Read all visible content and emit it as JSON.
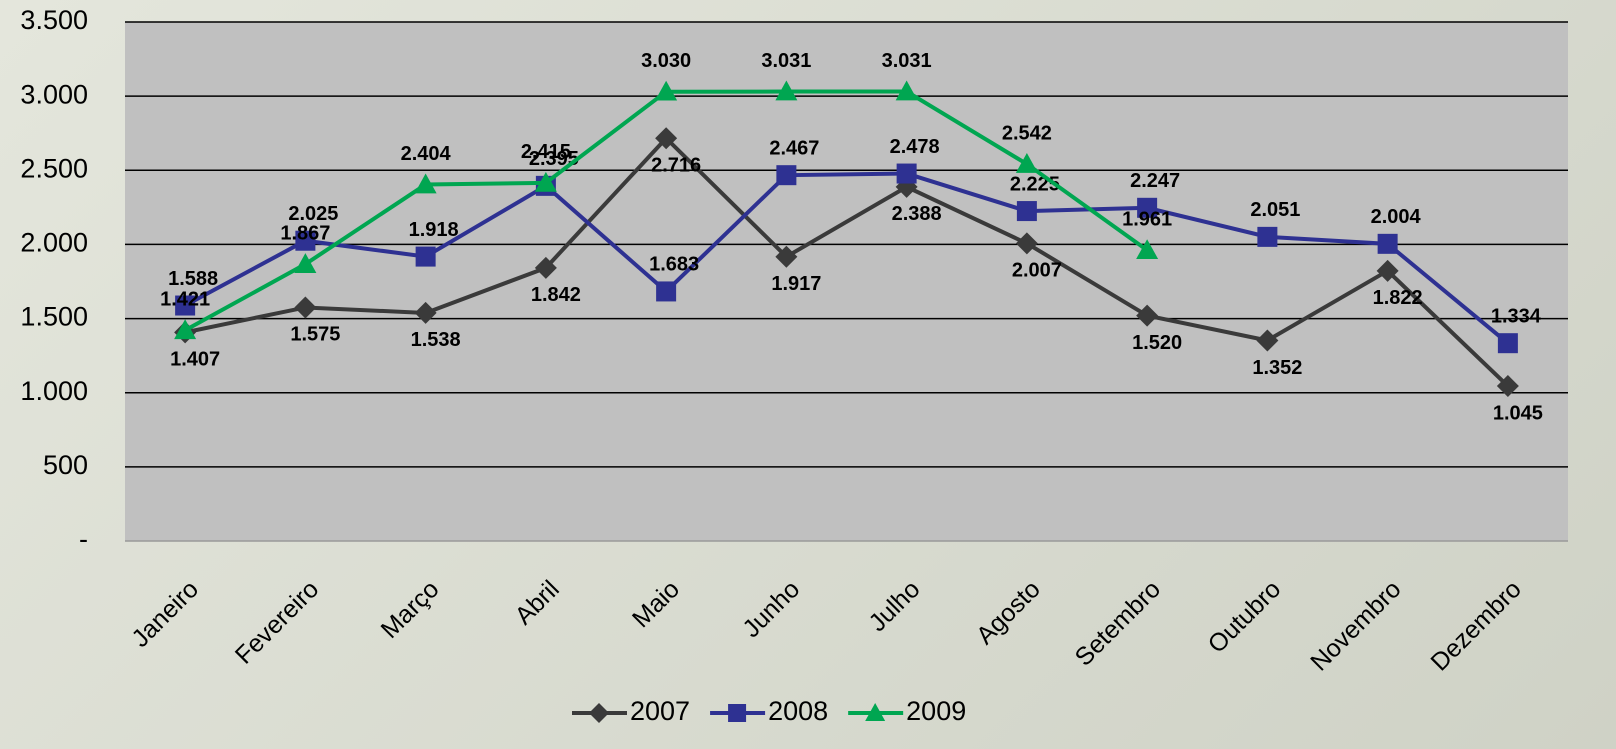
{
  "chart_data": {
    "type": "line",
    "categories": [
      "Janeiro",
      "Fevereiro",
      "Março",
      "Abril",
      "Maio",
      "Junho",
      "Julho",
      "Agosto",
      "Setembro",
      "Outubro",
      "Novembro",
      "Dezembro"
    ],
    "series": [
      {
        "name": "2007",
        "color": "#3a3a3a",
        "marker": "diamond",
        "values": [
          1407,
          1575,
          1538,
          1842,
          2716,
          1917,
          2388,
          2007,
          1520,
          1352,
          1822,
          1045
        ],
        "value_labels": [
          "1.407",
          "1.575",
          "1.538",
          "1.842",
          "2.716",
          "1.917",
          "2.388",
          "2.007",
          "1.520",
          "1.352",
          "1.822",
          "1.045"
        ]
      },
      {
        "name": "2008",
        "color": "#2e3192",
        "marker": "square",
        "values": [
          1588,
          2025,
          1918,
          2395,
          1683,
          2467,
          2478,
          2225,
          2247,
          2051,
          2004,
          1334
        ],
        "value_labels": [
          "1.588",
          "2.025",
          "1.918",
          "2.395",
          "1.683",
          "2.467",
          "2.478",
          "2.225",
          "2.247",
          "2.051",
          "2.004",
          "1.334"
        ]
      },
      {
        "name": "2009",
        "color": "#00a651",
        "marker": "triangle",
        "values": [
          1421,
          1867,
          2404,
          2415,
          3030,
          3031,
          3031,
          2542,
          1961,
          null,
          null,
          null
        ],
        "value_labels": [
          "1.421",
          "1.867",
          "2.404",
          "2.415",
          "3.030",
          "3.031",
          "3.031",
          "2.542",
          "1.961",
          null,
          null,
          null
        ]
      }
    ],
    "ylim": [
      0,
      3500
    ],
    "yticks": [
      {
        "value": 0,
        "label": "-"
      },
      500,
      {
        "value": 1000,
        "label": "1.000"
      },
      {
        "value": 1500,
        "label": "1.500"
      },
      {
        "value": 2000,
        "label": "2.000"
      },
      {
        "value": 2500,
        "label": "2.500"
      },
      {
        "value": 3000,
        "label": "3.000"
      },
      {
        "value": 3500,
        "label": "3.500"
      }
    ],
    "grid": true,
    "legend": "bottom"
  }
}
